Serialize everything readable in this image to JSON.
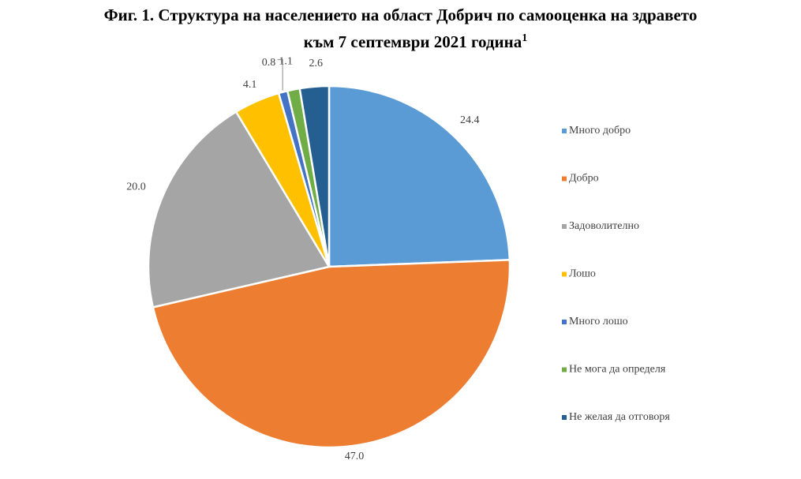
{
  "title": {
    "line1": "Фиг. 1. Структура на населението на област Добрич по самооценка на здравето",
    "line2": "към 7 септември 2021 година",
    "footnote_mark": "1"
  },
  "chart_data": {
    "type": "pie",
    "categories": [
      "Много добро",
      "Добро",
      "Задоволително",
      "Лошо",
      "Много лошо",
      "Не мога да определя",
      "Не желая да отговоря"
    ],
    "values": [
      24.4,
      47.0,
      20.0,
      4.1,
      0.8,
      1.1,
      2.6
    ],
    "data_labels": [
      "24.4",
      "47.0",
      "20.0",
      "4.1",
      "0.8",
      "1.1",
      "2.6"
    ],
    "colors": [
      "#5B9BD5",
      "#ED7D31",
      "#A5A5A5",
      "#FFC000",
      "#4472C4",
      "#70AD47",
      "#255E91"
    ],
    "start_angle": "12 o'clock",
    "direction": "clockwise",
    "legend_position": "right"
  }
}
